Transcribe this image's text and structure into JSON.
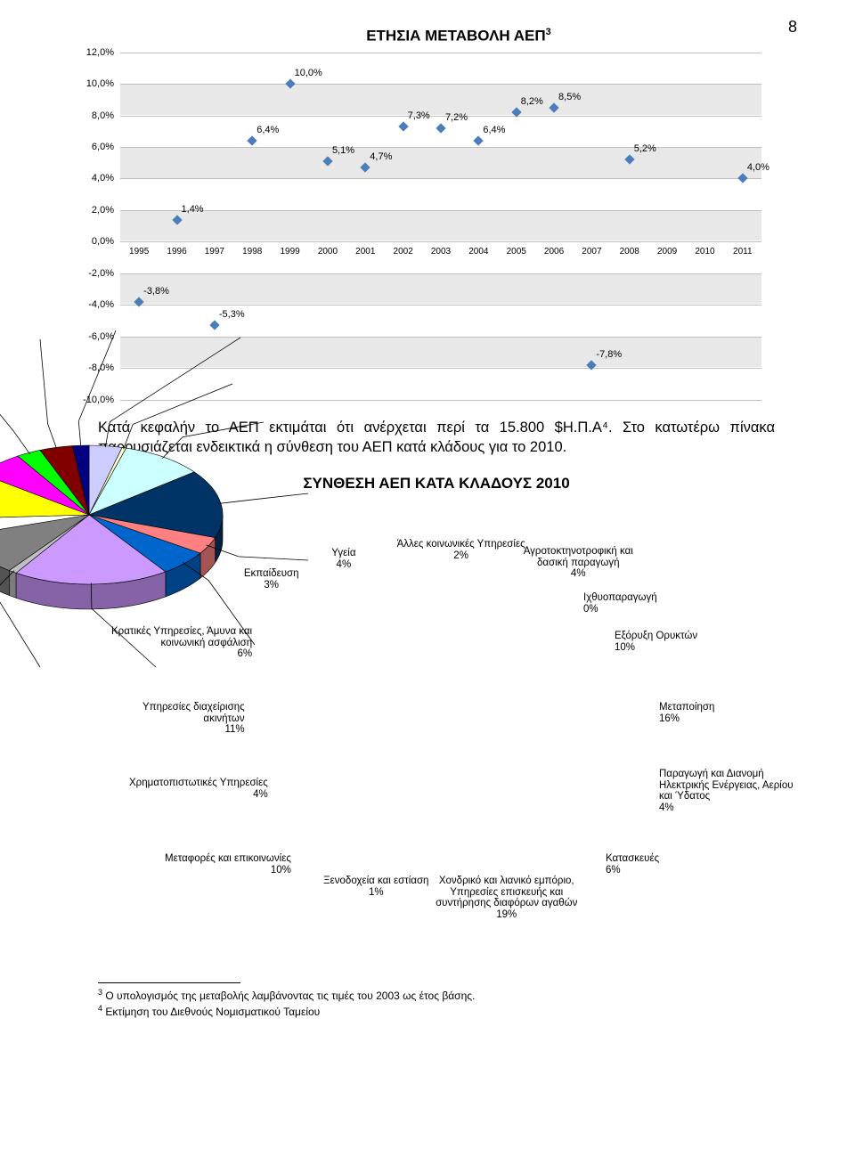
{
  "pageNumber": "8",
  "chart1": {
    "title": "ΕΤΗΣΙΑ ΜΕΤΑΒΟΛΗ ΑΕΠ",
    "title_sup": "3",
    "ylim": [
      -10,
      12
    ],
    "ytick_step": 2,
    "ytick_suffix": ",0%",
    "band_bg": "#e8e8e8",
    "grid_color": "#bfbfbf",
    "marker_color": "#4a7ebb",
    "years": [
      "1995",
      "1996",
      "1997",
      "1998",
      "1999",
      "2000",
      "2001",
      "2002",
      "2003",
      "2004",
      "2005",
      "2006",
      "2007",
      "2008",
      "2009",
      "2010",
      "2011"
    ],
    "values": [
      -3.8,
      1.4,
      -5.3,
      6.4,
      10.0,
      5.1,
      4.7,
      7.3,
      7.2,
      6.4,
      8.2,
      8.5,
      -7.8,
      5.2,
      null,
      null,
      4.0
    ],
    "labels": [
      "-3,8%",
      "1,4%",
      "-5,3%",
      "6,4%",
      "10,0%",
      "5,1%",
      "4,7%",
      "7,3%",
      "7,2%",
      "6,4%",
      "8,2%",
      "8,5%",
      "-7,8%",
      "5,2%",
      "",
      "",
      "4,0%"
    ]
  },
  "para": "Κατά κεφαλήν το ΑΕΠ εκτιμάται ότι ανέρχεται περί τα 15.800 $Η.Π.Α⁴. Στο κατωτέρω πίνακα παρουσιάζεται ενδεικτικά η σύνθεση του ΑΕΠ κατά κλάδους για το 2010.",
  "chart2": {
    "title": "ΣΥΝΘΕΣΗ ΑΕΠ ΚΑΤΑ ΚΛΑΔΟΥΣ 2010",
    "slices": [
      {
        "label": "Αγροτοκτηνοτροφική και\nδασική παραγωγή\n4%",
        "value": 4,
        "color": "#ccccff"
      },
      {
        "label": "Ιχθυοπαραγωγή\n0%",
        "value": 0.5,
        "color": "#ffffcc"
      },
      {
        "label": "Εξόρυξη Ορυκτών\n10%",
        "value": 10,
        "color": "#ccffff"
      },
      {
        "label": "Μεταποίηση\n16%",
        "value": 16,
        "color": "#003366"
      },
      {
        "label": "Παραγωγή και Διανομή\nΗλεκτρικής Ενέργειας, Αερίου\nκαι Ύδατος\n4%",
        "value": 4,
        "color": "#ff8080"
      },
      {
        "label": "Κατασκευές\n6%",
        "value": 6,
        "color": "#0066cc"
      },
      {
        "label": "Χονδρικό και λιανικό εμπόριο,\nΥπηρεσίες επισκευής και\nσυντήρησης διαφόρων αγαθών\n19%",
        "value": 19,
        "color": "#cc99ff"
      },
      {
        "label": "Ξενοδοχεία και εστίαση\n1%",
        "value": 1,
        "color": "#c0c0c0"
      },
      {
        "label": "Μεταφορές και επικοινωνίες\n10%",
        "value": 10,
        "color": "#808080"
      },
      {
        "label": "Χρηματοπιστωτικές Υπηρεσίες\n4%",
        "value": 4,
        "color": "#ffffff"
      },
      {
        "label": "Υπηρεσίες διαχείρισης\nακινήτων\n11%",
        "value": 11,
        "color": "#ffff00"
      },
      {
        "label": "Κρατικές Υπηρεσίες, Άμυνα και\nκοινωνική ασφάλιση\n6%",
        "value": 6,
        "color": "#ff00ff"
      },
      {
        "label": "Εκπαίδευση\n3%",
        "value": 3,
        "color": "#00ff00"
      },
      {
        "label": "Υγεία\n4%",
        "value": 4,
        "color": "#800000"
      },
      {
        "label": "Άλλες κοινωνικές Υπηρεσίες\n2%",
        "value": 2,
        "color": "#000080"
      }
    ],
    "stroke": "#000000",
    "side_color_darken": 0.65
  },
  "footnotes": {
    "f3": "Ο υπολογισμός της μεταβολής λαμβάνοντας τις τιμές του 2003 ως έτος βάσης.",
    "f4": "Εκτίμηση του Διεθνούς Νομισματικού Ταμείου"
  }
}
